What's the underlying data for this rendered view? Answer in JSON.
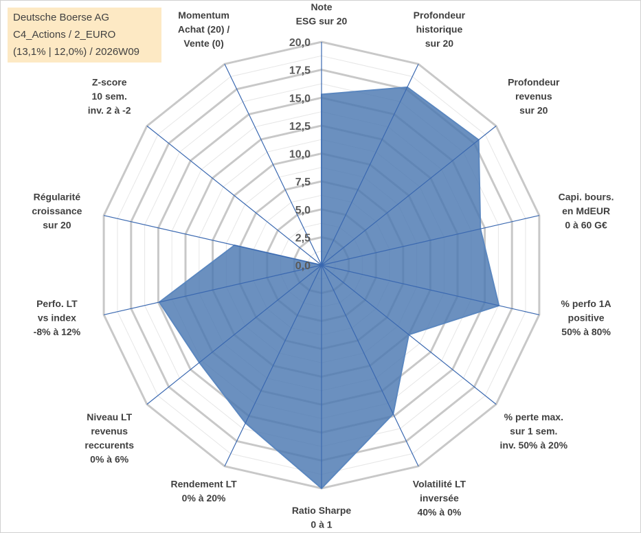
{
  "header": {
    "lines": [
      "Deutsche Boerse AG",
      "C4_Actions / 2_EURO",
      "(13,1% | 12,0%) / 2026W09"
    ]
  },
  "chart_data": {
    "type": "radar",
    "r_range": [
      0,
      20
    ],
    "ticks": [
      "0,0",
      "2,5",
      "5,0",
      "7,5",
      "10,0",
      "12,5",
      "15,0",
      "17,5",
      "20,0"
    ],
    "grid": true,
    "axes": [
      {
        "label": [
          "Note",
          "ESG sur 20"
        ],
        "value": 15.3
      },
      {
        "label": [
          "Profondeur",
          "historique",
          "sur 20"
        ],
        "value": 17.7
      },
      {
        "label": [
          "Profondeur",
          "revenus",
          "sur 20"
        ],
        "value": 18.0
      },
      {
        "label": [
          "Capi. bours.",
          "en MdEUR",
          "0 à 60 G€"
        ],
        "value": 14.6
      },
      {
        "label": [
          "% perfo 1A",
          "positive",
          "50% à 80%"
        ],
        "value": 16.3
      },
      {
        "label": [
          "% perte max.",
          "sur 1 sem.",
          "inv. 50% à 20%"
        ],
        "value": 10.0
      },
      {
        "label": [
          "Volatilité LT",
          "inversée",
          "40% à 0%"
        ],
        "value": 14.8
      },
      {
        "label": [
          "Ratio Sharpe",
          "0 à 1"
        ],
        "value": 20.0
      },
      {
        "label": [
          "Rendement LT",
          "0% à 20%"
        ],
        "value": 15.7
      },
      {
        "label": [
          "Niveau LT",
          "revenus",
          "reccurents",
          "0% à 6%"
        ],
        "value": 14.0
      },
      {
        "label": [
          "Perfo. LT",
          "vs index",
          "-8% à 12%"
        ],
        "value": 14.9
      },
      {
        "label": [
          "Régularité",
          "croissance",
          "sur 20"
        ],
        "value": 8.0
      },
      {
        "label": [
          "Z-score",
          "10 sem.",
          "inv. 2 à -2"
        ],
        "value": 0.0
      },
      {
        "label": [
          "Momentum",
          "Achat (20) /",
          "Vente (0)"
        ],
        "value": 0.0
      }
    ],
    "colors": {
      "fill": "#4a78b1",
      "stroke": "#5b87bf",
      "grid": "#c8c8c8",
      "grid_minor": "#e6e6e6",
      "spoke": "#3a68b0"
    }
  }
}
